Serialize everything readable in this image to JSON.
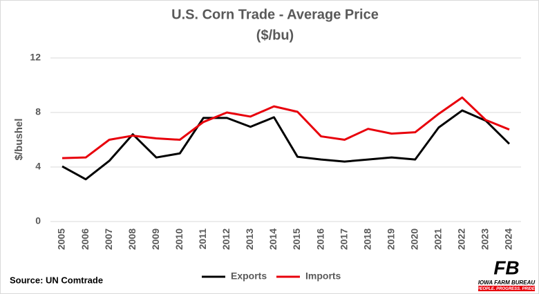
{
  "chart_data": {
    "type": "line",
    "title": "U.S. Corn Trade - Average Price",
    "subtitle": "($/bu)",
    "y_label": "$/bushel",
    "categories": [
      "2005",
      "2006",
      "2007",
      "2008",
      "2009",
      "2010",
      "2011",
      "2012",
      "2013",
      "2014",
      "2015",
      "2016",
      "2017",
      "2018",
      "2019",
      "2020",
      "2021",
      "2022",
      "2023",
      "2024"
    ],
    "series": [
      {
        "name": "Exports",
        "color": "#000000",
        "values": [
          4.05,
          3.1,
          4.45,
          6.4,
          4.7,
          5.0,
          7.6,
          7.6,
          6.95,
          7.65,
          4.75,
          4.55,
          4.4,
          4.55,
          4.7,
          4.55,
          6.9,
          8.15,
          7.4,
          5.7
        ]
      },
      {
        "name": "Imports",
        "color": "#e8000b",
        "values": [
          4.65,
          4.7,
          6.0,
          6.3,
          6.1,
          6.0,
          7.3,
          8.0,
          7.7,
          8.45,
          8.05,
          6.25,
          6.0,
          6.8,
          6.45,
          6.55,
          7.9,
          9.1,
          7.45,
          6.75
        ]
      }
    ],
    "ylim": [
      0,
      12
    ],
    "yticks": [
      0,
      4,
      8,
      12
    ],
    "grid": true,
    "legend": "bottom",
    "source": "Source: UN Comtrade"
  },
  "logo": {
    "mark": "FB",
    "name": "IOWA FARM BUREAU",
    "tagline": "PEOPLE. PROGRESS. PRIDE."
  }
}
